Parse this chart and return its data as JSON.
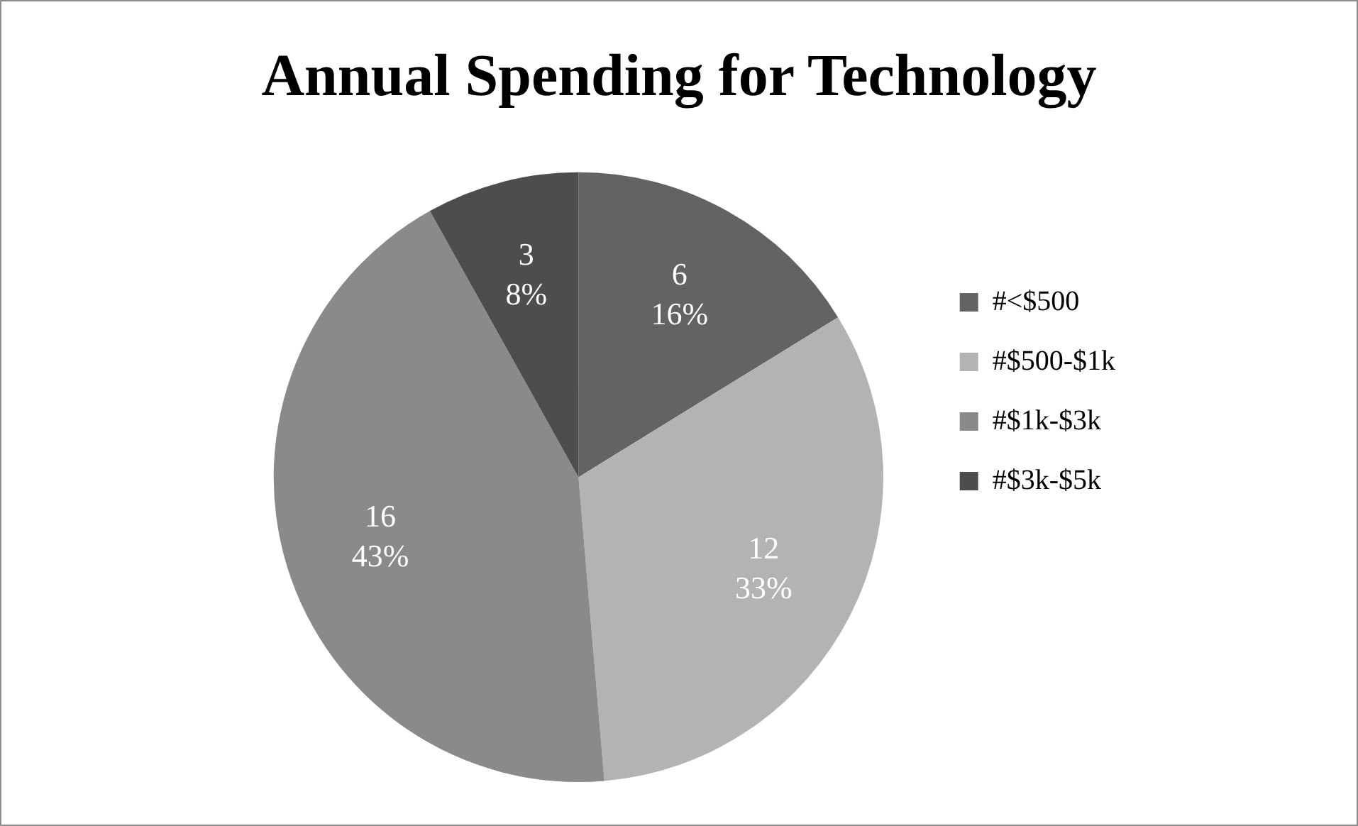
{
  "chart_data": {
    "type": "pie",
    "title": "Annual Spending for Technology",
    "categories": [
      "#<$500",
      "#$500-$1k",
      "#$1k-$3k",
      "#$3k-$5k"
    ],
    "values": [
      6,
      12,
      16,
      3
    ],
    "colors": [
      "#636363",
      "#b3b3b3",
      "#8a8a8a",
      "#4d4d4d"
    ],
    "value_labels": [
      "6\n16%",
      "12\n33%",
      "16\n43%",
      "3\n8%"
    ],
    "legend": "right"
  }
}
